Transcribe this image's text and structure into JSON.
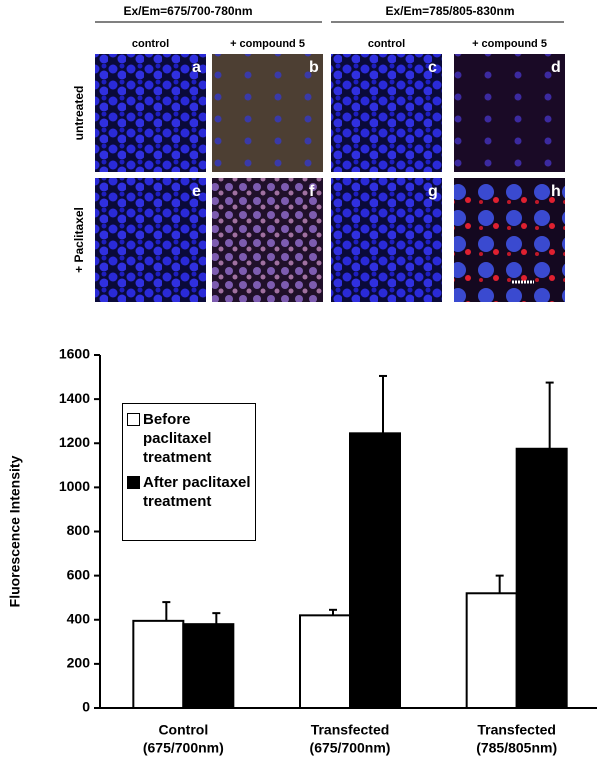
{
  "panels": {
    "headers": [
      "Ex/Em=675/700-780nm",
      "Ex/Em=785/805-830nm"
    ],
    "subheaders": [
      "control",
      "+ compound 5",
      "control",
      "+ compound 5"
    ],
    "rows": [
      "untreated",
      "+ Paclitaxel"
    ],
    "letters": [
      "a",
      "b",
      "c",
      "d",
      "e",
      "f",
      "g",
      "h"
    ]
  },
  "chart_data": {
    "type": "bar",
    "y_label": "Fluorescence Intensity",
    "categories": [
      [
        "Control",
        "(675/700nm)"
      ],
      [
        "Transfected",
        "(675/700nm)"
      ],
      [
        "Transfected",
        "(785/805nm)"
      ]
    ],
    "series": [
      {
        "name": "Before paclitaxel treatment",
        "color": "#ffffff",
        "values": [
          395,
          420,
          520
        ],
        "errors": [
          85,
          25,
          80
        ]
      },
      {
        "name": "After paclitaxel treatment",
        "color": "#000000",
        "values": [
          380,
          1245,
          1175
        ],
        "errors": [
          50,
          260,
          300
        ]
      }
    ],
    "ylim": [
      0,
      1600
    ],
    "yticks": [
      0,
      200,
      400,
      600,
      800,
      1000,
      1200,
      1400,
      1600
    ]
  }
}
